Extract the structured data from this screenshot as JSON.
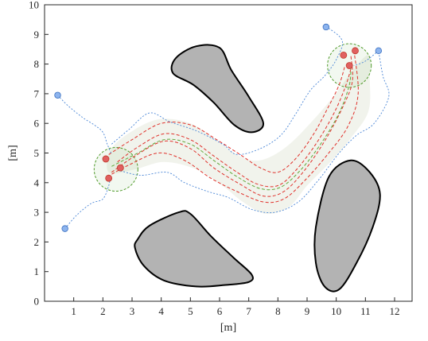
{
  "chart_data": {
    "type": "scatter",
    "xlabel": "[m]",
    "ylabel": "[m]",
    "xlim": [
      0,
      12.6
    ],
    "ylim": [
      0,
      10
    ],
    "x_ticks": [
      1,
      2,
      3,
      4,
      5,
      6,
      7,
      8,
      9,
      10,
      11,
      12
    ],
    "y_ticks": [
      0,
      1,
      2,
      3,
      4,
      5,
      6,
      7,
      8,
      9,
      10
    ],
    "grid": false,
    "colors": {
      "obstacle_fill": "#b3b3b3",
      "obstacle_edge": "#000000",
      "corridor_fill": "#f1f3ec",
      "red_path": "#e0302a",
      "green_path": "#5fa83a",
      "blue_path": "#4a86d6",
      "goal_circle": "#4f9a2a",
      "red_marker": "#e06060",
      "blue_marker": "#8db4ee"
    },
    "obstacles": [
      [
        [
          4.5,
          8.2
        ],
        [
          5.2,
          8.6
        ],
        [
          6.0,
          8.55
        ],
        [
          6.4,
          7.8
        ],
        [
          7.0,
          6.9
        ],
        [
          7.5,
          6.0
        ],
        [
          7.1,
          5.7
        ],
        [
          6.5,
          5.95
        ],
        [
          5.8,
          6.7
        ],
        [
          5.1,
          7.3
        ],
        [
          4.4,
          7.7
        ]
      ],
      [
        [
          9.3,
          2.5
        ],
        [
          9.75,
          4.2
        ],
        [
          10.5,
          4.75
        ],
        [
          11.15,
          4.35
        ],
        [
          11.5,
          3.6
        ],
        [
          11.25,
          2.5
        ],
        [
          10.7,
          1.3
        ],
        [
          10.1,
          0.4
        ],
        [
          9.6,
          0.5
        ],
        [
          9.3,
          1.3
        ]
      ],
      [
        [
          3.1,
          1.8
        ],
        [
          3.2,
          2.1
        ],
        [
          3.6,
          2.55
        ],
        [
          4.6,
          3.0
        ],
        [
          5.0,
          2.95
        ],
        [
          5.7,
          2.2
        ],
        [
          6.5,
          1.45
        ],
        [
          7.1,
          0.9
        ],
        [
          7.0,
          0.65
        ],
        [
          6.2,
          0.55
        ],
        [
          5.2,
          0.5
        ],
        [
          4.1,
          0.7
        ],
        [
          3.4,
          1.2
        ]
      ]
    ],
    "corridor": [
      [
        2.3,
        5.15
      ],
      [
        3.1,
        5.8
      ],
      [
        4.0,
        6.15
      ],
      [
        5.0,
        6.0
      ],
      [
        5.8,
        5.5
      ],
      [
        6.5,
        5.0
      ],
      [
        7.1,
        4.75
      ],
      [
        7.7,
        4.85
      ],
      [
        8.4,
        5.3
      ],
      [
        9.2,
        6.1
      ],
      [
        9.9,
        6.9
      ],
      [
        10.5,
        7.7
      ],
      [
        11.1,
        8.3
      ],
      [
        11.15,
        7.5
      ],
      [
        11.1,
        6.4
      ],
      [
        10.5,
        5.5
      ],
      [
        9.8,
        4.7
      ],
      [
        9.0,
        3.9
      ],
      [
        8.4,
        3.2
      ],
      [
        7.6,
        2.95
      ],
      [
        6.8,
        3.35
      ],
      [
        6.1,
        3.9
      ],
      [
        5.2,
        4.45
      ],
      [
        4.1,
        4.7
      ],
      [
        3.1,
        4.45
      ],
      [
        2.2,
        4.35
      ]
    ],
    "goal_regions": [
      {
        "center": [
          2.45,
          4.45
        ],
        "radius": 0.75
      },
      {
        "center": [
          10.45,
          7.95
        ],
        "radius": 0.75
      }
    ],
    "series": [
      {
        "color": "red",
        "style": "dashed",
        "points": [
          [
            2.2,
            4.95
          ],
          [
            3.0,
            5.45
          ],
          [
            4.0,
            6.0
          ],
          [
            5.0,
            5.95
          ],
          [
            5.9,
            5.45
          ],
          [
            6.7,
            4.95
          ],
          [
            7.4,
            4.5
          ],
          [
            8.0,
            4.35
          ],
          [
            8.6,
            4.8
          ],
          [
            9.2,
            5.6
          ],
          [
            9.7,
            6.5
          ],
          [
            10.1,
            7.3
          ],
          [
            10.3,
            7.95
          ]
        ]
      },
      {
        "color": "red",
        "style": "dashed",
        "points": [
          [
            2.5,
            4.7
          ],
          [
            3.2,
            5.2
          ],
          [
            4.1,
            5.65
          ],
          [
            5.0,
            5.45
          ],
          [
            5.8,
            4.9
          ],
          [
            6.6,
            4.35
          ],
          [
            7.3,
            3.95
          ],
          [
            8.0,
            3.9
          ],
          [
            8.6,
            4.4
          ],
          [
            9.3,
            5.3
          ],
          [
            9.9,
            6.3
          ],
          [
            10.3,
            7.2
          ],
          [
            10.55,
            8.0
          ]
        ]
      },
      {
        "color": "red",
        "style": "dashed",
        "points": [
          [
            2.3,
            4.35
          ],
          [
            3.1,
            4.9
          ],
          [
            4.1,
            5.4
          ],
          [
            5.0,
            5.15
          ],
          [
            5.8,
            4.5
          ],
          [
            6.7,
            3.95
          ],
          [
            7.5,
            3.55
          ],
          [
            8.2,
            3.7
          ],
          [
            8.9,
            4.4
          ],
          [
            9.6,
            5.4
          ],
          [
            10.2,
            6.5
          ],
          [
            10.55,
            7.4
          ],
          [
            10.5,
            8.3
          ]
        ]
      },
      {
        "color": "red",
        "style": "dashed",
        "points": [
          [
            2.15,
            4.2
          ],
          [
            2.9,
            4.6
          ],
          [
            3.9,
            5.0
          ],
          [
            4.8,
            4.75
          ],
          [
            5.7,
            4.15
          ],
          [
            6.6,
            3.7
          ],
          [
            7.5,
            3.35
          ],
          [
            8.2,
            3.45
          ],
          [
            8.9,
            4.05
          ],
          [
            9.7,
            4.95
          ],
          [
            10.4,
            5.9
          ],
          [
            10.75,
            7.0
          ],
          [
            10.6,
            8.5
          ]
        ]
      },
      {
        "color": "green",
        "style": "dashed",
        "points": [
          [
            2.3,
            4.55
          ],
          [
            3.2,
            5.0
          ],
          [
            4.1,
            5.45
          ],
          [
            5.0,
            5.3
          ],
          [
            5.8,
            4.75
          ],
          [
            6.6,
            4.2
          ],
          [
            7.4,
            3.8
          ],
          [
            8.1,
            3.85
          ],
          [
            8.8,
            4.45
          ],
          [
            9.5,
            5.35
          ],
          [
            10.1,
            6.35
          ],
          [
            10.45,
            7.3
          ],
          [
            10.5,
            7.95
          ]
        ]
      },
      {
        "color": "blue",
        "style": "dotted",
        "points": [
          [
            0.45,
            6.95
          ],
          [
            0.8,
            6.6
          ],
          [
            1.3,
            6.2
          ],
          [
            1.7,
            5.95
          ],
          [
            2.0,
            5.7
          ],
          [
            2.15,
            5.3
          ],
          [
            2.3,
            4.95
          ]
        ]
      },
      {
        "color": "blue",
        "style": "dotted",
        "points": [
          [
            2.3,
            5.3
          ],
          [
            2.9,
            5.8
          ],
          [
            3.6,
            6.35
          ],
          [
            4.3,
            6.05
          ],
          [
            5.2,
            5.75
          ],
          [
            6.1,
            5.3
          ],
          [
            6.6,
            4.95
          ],
          [
            7.4,
            5.15
          ],
          [
            8.1,
            5.6
          ],
          [
            8.6,
            6.3
          ],
          [
            9.1,
            7.1
          ],
          [
            9.6,
            7.6
          ],
          [
            10.0,
            8.15
          ],
          [
            10.2,
            8.8
          ],
          [
            9.6,
            9.3
          ]
        ]
      },
      {
        "color": "blue",
        "style": "dotted",
        "points": [
          [
            0.7,
            2.45
          ],
          [
            1.1,
            2.9
          ],
          [
            1.6,
            3.3
          ],
          [
            2.0,
            3.45
          ],
          [
            2.2,
            3.9
          ],
          [
            2.25,
            4.2
          ]
        ]
      },
      {
        "color": "blue",
        "style": "dotted",
        "points": [
          [
            2.6,
            4.4
          ],
          [
            3.3,
            4.25
          ],
          [
            4.2,
            4.35
          ],
          [
            4.8,
            4.0
          ],
          [
            5.6,
            3.7
          ],
          [
            6.3,
            3.5
          ],
          [
            7.1,
            3.1
          ],
          [
            7.9,
            3.0
          ],
          [
            8.7,
            3.35
          ],
          [
            9.4,
            4.1
          ],
          [
            10.1,
            5.0
          ],
          [
            10.7,
            5.6
          ],
          [
            11.3,
            6.0
          ],
          [
            11.8,
            6.9
          ],
          [
            11.6,
            7.6
          ],
          [
            11.45,
            8.45
          ]
        ]
      },
      {
        "color": "blue",
        "style": "dotted",
        "points": [
          [
            11.45,
            8.45
          ],
          [
            11.0,
            8.1
          ],
          [
            10.6,
            7.95
          ]
        ]
      }
    ],
    "red_markers": [
      [
        2.1,
        4.8
      ],
      [
        2.6,
        4.5
      ],
      [
        2.2,
        4.15
      ],
      [
        10.25,
        8.3
      ],
      [
        10.65,
        8.45
      ],
      [
        10.45,
        7.95
      ]
    ],
    "blue_markers": [
      [
        0.45,
        6.95
      ],
      [
        0.7,
        2.45
      ],
      [
        9.65,
        9.25
      ],
      [
        11.45,
        8.45
      ]
    ]
  }
}
